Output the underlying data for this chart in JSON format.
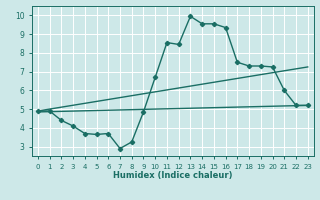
{
  "title": "",
  "xlabel": "Humidex (Indice chaleur)",
  "bg_color": "#cde8e8",
  "grid_color": "#ffffff",
  "line_color": "#1a6e64",
  "xlim": [
    -0.5,
    23.5
  ],
  "ylim": [
    2.5,
    10.5
  ],
  "xticks": [
    0,
    1,
    2,
    3,
    4,
    5,
    6,
    7,
    8,
    9,
    10,
    11,
    12,
    13,
    14,
    15,
    16,
    17,
    18,
    19,
    20,
    21,
    22,
    23
  ],
  "yticks": [
    3,
    4,
    5,
    6,
    7,
    8,
    9,
    10
  ],
  "line1_x": [
    0,
    1,
    2,
    3,
    4,
    5,
    6,
    7,
    8,
    9,
    10,
    11,
    12,
    13,
    14,
    15,
    16,
    17,
    18,
    19,
    20,
    21,
    22,
    23
  ],
  "line1_y": [
    4.9,
    4.9,
    4.4,
    4.1,
    3.7,
    3.65,
    3.7,
    2.9,
    3.25,
    4.85,
    6.7,
    8.55,
    8.45,
    9.95,
    9.55,
    9.55,
    9.35,
    7.5,
    7.3,
    7.3,
    7.25,
    6.0,
    5.2,
    5.2
  ],
  "line2_x": [
    0,
    23
  ],
  "line2_y": [
    4.9,
    7.25
  ],
  "line3_x": [
    0,
    23
  ],
  "line3_y": [
    4.85,
    5.2
  ],
  "marker_size": 2.2,
  "line_width": 1.0,
  "tick_fontsize": 5.0,
  "xlabel_fontsize": 6.0
}
